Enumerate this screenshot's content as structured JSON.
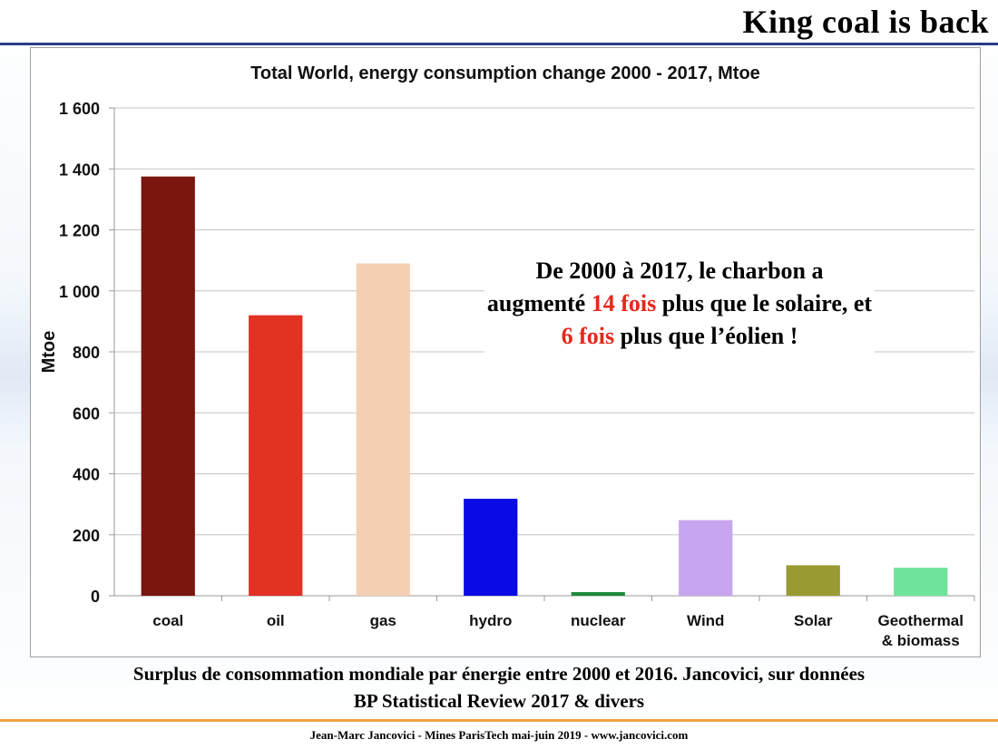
{
  "slide": {
    "title": "King coal is back",
    "caption_line1": "Surplus de consommation mondiale par énergie entre 2000 et 2016. Jancovici, sur données",
    "caption_line2": "BP Statistical Review 2017 & divers",
    "footer": "Jean-Marc Jancovici - Mines ParisTech mai-juin 2019 - www.jancovici.com"
  },
  "callout": {
    "part1": "De 2000 à 2017, le charbon a augmenté ",
    "highlight1": "14 fois",
    "part2": " plus que le solaire, et ",
    "highlight2": "6 fois",
    "part3": " plus que l’éolien !",
    "highlight_color": "#e5281c"
  },
  "chart_data": {
    "type": "bar",
    "title": "Total World, energy consumption change 2000 - 2017, Mtoe",
    "xlabel": "",
    "ylabel": "Mtoe",
    "ylim": [
      0,
      1600
    ],
    "yticks": [
      0,
      200,
      400,
      600,
      800,
      1000,
      1200,
      1400,
      1600
    ],
    "ytick_labels": [
      "0",
      "200",
      "400",
      "600",
      "800",
      "1 000",
      "1 200",
      "1 400",
      "1 600"
    ],
    "categories": [
      "coal",
      "oil",
      "gas",
      "hydro",
      "nuclear",
      "Wind",
      "Solar",
      "Geothermal\n& biomass"
    ],
    "values": [
      1375,
      920,
      1090,
      318,
      12,
      248,
      100,
      92
    ],
    "colors": [
      "#7a1510",
      "#e33122",
      "#f5cfb3",
      "#0a0ae6",
      "#1f8a3a",
      "#c7a5ef",
      "#9a9a33",
      "#6fe39a"
    ],
    "grid": true,
    "legend": "none"
  }
}
